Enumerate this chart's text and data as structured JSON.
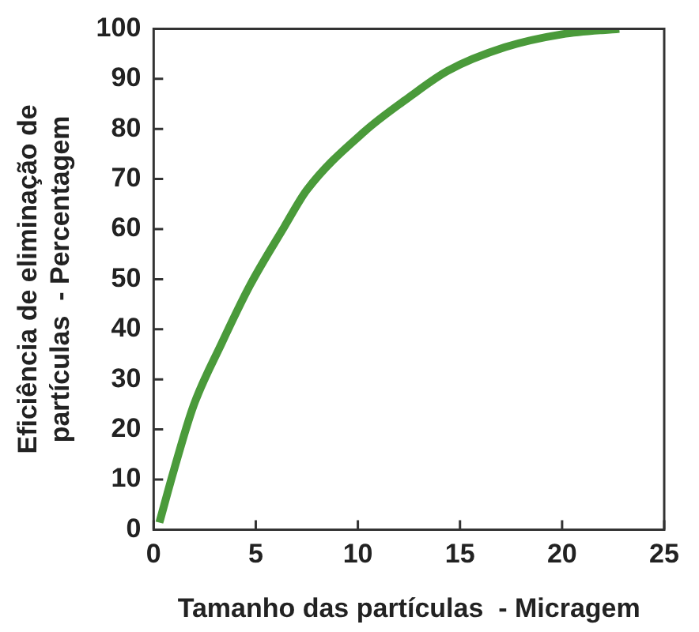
{
  "chart_data": {
    "type": "line",
    "xlabel": "Tamanho das partículas  - Micragem",
    "ylabel": "Eficiência de eliminação de\npartículas  - Percentagem",
    "x": [
      0.28,
      1,
      1.94,
      3.33,
      4.72,
      6.39,
      7.5,
      10.3,
      12.5,
      14.4,
      17.2,
      20,
      22.8
    ],
    "series": [
      {
        "color": "#4a9a3a",
        "values": [
          1.4,
          12,
          24.6,
          37.2,
          48.8,
          60.4,
          67.8,
          79.4,
          86.3,
          91.6,
          96.3,
          98.9,
          100
        ]
      }
    ],
    "xlim": [
      0,
      25
    ],
    "xticks": [
      0,
      5,
      10,
      15,
      20,
      25
    ],
    "ylim": [
      0,
      100
    ],
    "yticks": [
      0,
      10,
      20,
      30,
      40,
      50,
      60,
      70,
      80,
      90,
      100
    ],
    "grid": false,
    "legend": false,
    "marker": "none",
    "line_style": "solid"
  }
}
